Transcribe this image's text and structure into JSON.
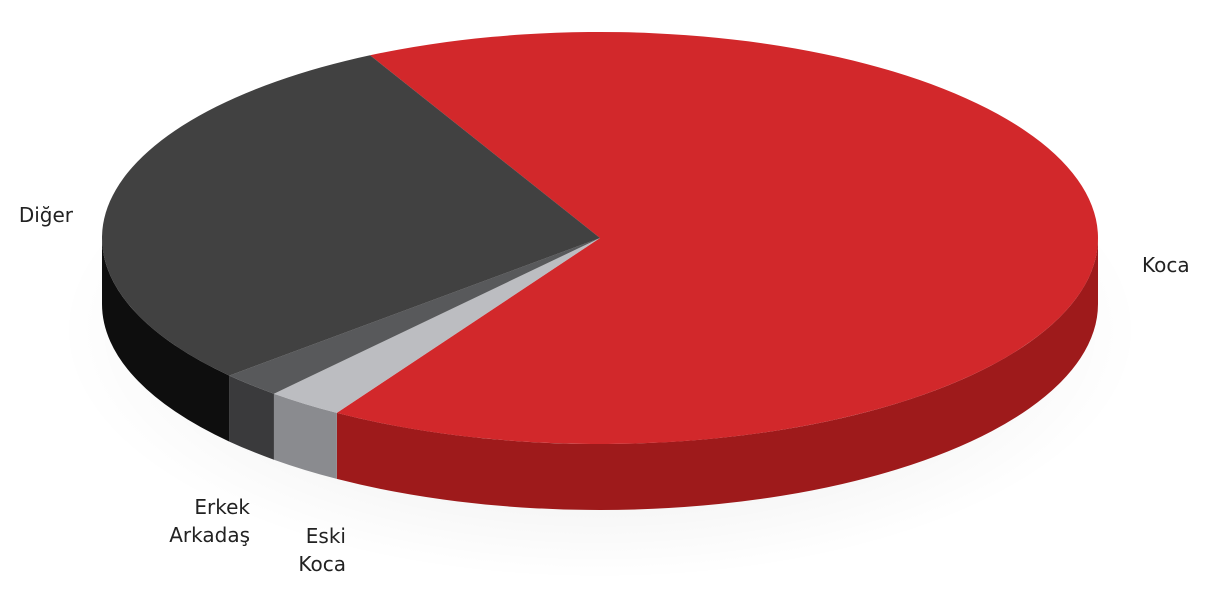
{
  "chart_data": {
    "type": "pie",
    "title": "",
    "slices": [
      {
        "label": [
          "Koca"
        ],
        "value": 66.5,
        "color": "#d2282b",
        "side_color": "#9e1a1b"
      },
      {
        "label": [
          "Eski",
          "Koca"
        ],
        "value": 2.5,
        "color": "#bcbdc1",
        "side_color": "#8a8b8f"
      },
      {
        "label": [
          "Erkek",
          "Arkadaş"
        ],
        "value": 2.0,
        "color": "#58595b",
        "side_color": "#3a3a3c"
      },
      {
        "label": [
          "Diğer"
        ],
        "value": 29.0,
        "color": "#414141",
        "side_color": "#0e0e0e"
      }
    ],
    "legend": "none",
    "style": "3d-tilted"
  }
}
